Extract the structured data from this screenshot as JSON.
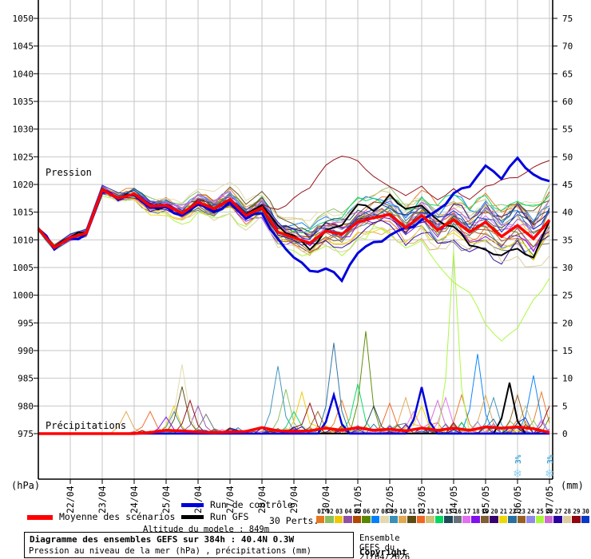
{
  "legend": {
    "mean": "Moyenne des scénarios",
    "control": "Run de contrôle",
    "gfs": "Run GFS",
    "perts": "30 Perts.",
    "altitude": "Altitude du modele : 849m"
  },
  "title_box": {
    "line1": "Diagramme des ensembles GEFS sur 384h : 40.4N 0.3W",
    "line2": "Pression au niveau de la mer (hPa) , précipitations (mm)"
  },
  "source_box": {
    "line1": "Ensemble GEFS du 21/04/2026 - 06Z",
    "line2": "Copyright 2026 Meteociel.fr"
  },
  "chart_data": {
    "type": "line",
    "title": "Diagramme des ensembles GEFS sur 384h : 40.4N 0.3W",
    "run": "21/04/2026 06Z",
    "hours_total": 384,
    "step_hours": 6,
    "x_labels": [
      "22/04",
      "23/04",
      "24/04",
      "25/04",
      "26/04",
      "27/04",
      "28/04",
      "29/04",
      "30/04",
      "01/05",
      "02/05",
      "03/05",
      "04/05",
      "05/05",
      "06/05",
      "07/05"
    ],
    "pressure_axis": {
      "title": "Pression",
      "unit": "(hPa)",
      "min": 975,
      "max": 1050,
      "step": 5
    },
    "precip_axis": {
      "title": "Précipitations",
      "unit": "(mm)",
      "min": 0,
      "max": 75,
      "step": 5
    },
    "series": {
      "mean_pressure_12h": [
        1012,
        1008.6,
        1010.4,
        1011.2,
        1019,
        1017.5,
        1018.3,
        1016.1,
        1016.2,
        1014.8,
        1016.8,
        1015.6,
        1017.3,
        1014.4,
        1015.8,
        1011.4,
        1010.4,
        1009.4,
        1011.6,
        1011,
        1013.2,
        1014,
        1014.6,
        1012.2,
        1014.4,
        1011.8,
        1013.6,
        1011.4,
        1013.2,
        1010.6,
        1012.6,
        1010.2,
        1013.6
      ],
      "control_pressure_12h": [
        1012,
        1008.3,
        1010.2,
        1011,
        1018.6,
        1017.2,
        1018.1,
        1015.8,
        1016,
        1014.4,
        1016.4,
        1015,
        1016.8,
        1013.8,
        1014.8,
        1010.2,
        1006.8,
        1004.4,
        1004.8,
        1002.6,
        1007.6,
        1009.6,
        1010.8,
        1012.2,
        1013.6,
        1015.4,
        1018.4,
        1019.6,
        1023.4,
        1021,
        1024.8,
        1021.8,
        1020.6
      ],
      "gfs_pressure_12h": [
        1012,
        1008.8,
        1010.5,
        1011.3,
        1019.2,
        1017.3,
        1018.2,
        1016,
        1016,
        1014.6,
        1016.6,
        1015.2,
        1017,
        1014.6,
        1016.2,
        1012.6,
        1010.8,
        1008.2,
        1011.8,
        1012.6,
        1016.4,
        1015.2,
        1018.2,
        1015.6,
        1016.2,
        1013.6,
        1012.4,
        1009,
        1008.2,
        1007.2,
        1008.4,
        1006.8,
        1013.4
      ],
      "mean_precip_12h": [
        0,
        0,
        0,
        0,
        0,
        0,
        0,
        0.2,
        0.6,
        0.5,
        0.3,
        0.2,
        0.3,
        0.4,
        1.1,
        0.5,
        0.4,
        0.5,
        1.0,
        0.6,
        1.1,
        0.6,
        0.8,
        0.5,
        1.0,
        0.6,
        1.0,
        0.6,
        1.2,
        1.0,
        1.2,
        0.9,
        0.2
      ]
    },
    "member_overrides_12h": {
      "24": [
        null,
        null,
        null,
        null,
        null,
        null,
        null,
        null,
        null,
        null,
        null,
        null,
        null,
        null,
        null,
        null,
        null,
        null,
        null,
        null,
        null,
        1012.5,
        1011,
        1008.5,
        1010,
        1005.5,
        1002.5,
        1000.5,
        995,
        991.5,
        994,
        999,
        1003
      ],
      "28": [
        null,
        null,
        null,
        null,
        null,
        null,
        null,
        null,
        null,
        null,
        null,
        null,
        null,
        null,
        1016.5,
        1015.2,
        1017.5,
        1019.5,
        1023.5,
        1025.2,
        1024,
        1021.5,
        1019.5,
        1018,
        1019.5,
        1017.5,
        1019,
        1017.2,
        1019.5,
        1021,
        1021.2,
        1023,
        1024.3
      ]
    },
    "precip_spikes": [
      [
        9,
        11,
        4
      ],
      [
        11,
        14,
        4
      ],
      [
        17,
        16,
        3
      ],
      [
        8,
        17,
        4
      ],
      [
        2,
        17,
        5
      ],
      [
        7,
        18,
        12.5
      ],
      [
        10,
        18,
        8.5
      ],
      [
        28,
        19,
        6
      ],
      [
        3,
        20,
        5
      ],
      [
        15,
        21,
        3.5
      ],
      [
        8,
        30,
        12.2
      ],
      [
        1,
        31,
        8
      ],
      [
        13,
        32,
        4
      ],
      [
        2,
        33,
        7.5
      ],
      [
        28,
        34,
        5.5
      ],
      [
        22,
        35,
        4
      ],
      [
        21,
        37,
        16.4
      ],
      [
        "C",
        37,
        7
      ],
      [
        0,
        38,
        6
      ],
      [
        13,
        40,
        9
      ],
      [
        5,
        41,
        18.5
      ],
      [
        14,
        42,
        5
      ],
      [
        11,
        44,
        5.5
      ],
      [
        9,
        46,
        6.5
      ],
      [
        16,
        47,
        4
      ],
      [
        20,
        48,
        5
      ],
      [
        "C",
        48,
        8.4
      ],
      [
        25,
        50,
        6
      ],
      [
        16,
        51,
        6.5
      ],
      [
        24,
        52,
        33
      ],
      [
        0,
        53,
        7
      ],
      [
        6,
        55,
        14.4
      ],
      [
        9,
        56,
        7
      ],
      [
        8,
        57,
        6.5
      ],
      [
        "G",
        59,
        9.2
      ],
      [
        22,
        60,
        7
      ],
      [
        12,
        61,
        5
      ],
      [
        6,
        62,
        10.5
      ],
      [
        0,
        63,
        7.5
      ],
      [
        28,
        64,
        5
      ]
    ],
    "snow_markers": [
      {
        "day_index": 15,
        "label": "3%",
        "symbol": "❄"
      },
      {
        "day_index": 16,
        "label": "3%",
        "symbol": "❄"
      }
    ],
    "colors": {
      "mean": "#FF0000",
      "control": "#0000DD",
      "gfs": "#000000",
      "grid": "#C6C6C6",
      "axis": "#000000",
      "snow": "#8CD0F0",
      "snow_text": "#38A0D8"
    },
    "perts": [
      {
        "num": "01",
        "color": "#E87820"
      },
      {
        "num": "02",
        "color": "#88C060"
      },
      {
        "num": "03",
        "color": "#F0C800"
      },
      {
        "num": "04",
        "color": "#9050A8"
      },
      {
        "num": "05",
        "color": "#B04800"
      },
      {
        "num": "06",
        "color": "#588800"
      },
      {
        "num": "07",
        "color": "#0080FF"
      },
      {
        "num": "08",
        "color": "#E4D8AC"
      },
      {
        "num": "09",
        "color": "#3890B8"
      },
      {
        "num": "10",
        "color": "#E0A850"
      },
      {
        "num": "11",
        "color": "#5A4C14"
      },
      {
        "num": "12",
        "color": "#F26522"
      },
      {
        "num": "13",
        "color": "#D0C078"
      },
      {
        "num": "14",
        "color": "#00D860"
      },
      {
        "num": "15",
        "color": "#204858"
      },
      {
        "num": "16",
        "color": "#687078"
      },
      {
        "num": "17",
        "color": "#E070F0"
      },
      {
        "num": "18",
        "color": "#8010F0"
      },
      {
        "num": "19",
        "color": "#806030"
      },
      {
        "num": "20",
        "color": "#380070"
      },
      {
        "num": "21",
        "color": "#EED800"
      },
      {
        "num": "22",
        "color": "#2870A0"
      },
      {
        "num": "23",
        "color": "#986020"
      },
      {
        "num": "24",
        "color": "#9088E8"
      },
      {
        "num": "25",
        "color": "#A8F838"
      },
      {
        "num": "26",
        "color": "#D068D0"
      },
      {
        "num": "27",
        "color": "#2800A0"
      },
      {
        "num": "28",
        "color": "#DCCCA0"
      },
      {
        "num": "29",
        "color": "#900610"
      },
      {
        "num": "30",
        "color": "#0838C8"
      }
    ]
  }
}
